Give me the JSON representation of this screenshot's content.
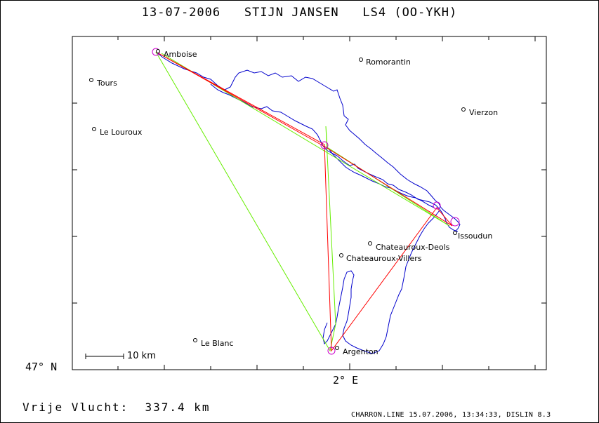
{
  "header": {
    "date": "13-07-2006",
    "pilot": "STIJN JANSEN",
    "glider": "LS4 (OO-YKH)"
  },
  "axes": {
    "lat_label": "47° N",
    "lon_label": "2° E"
  },
  "scale_bar": {
    "label": "10 km"
  },
  "result": {
    "label": "Vrije Vlucht:",
    "value": "337.4 km"
  },
  "footer": "CHARRON.LINE 15.07.2006, 13:34:33, DISLIN 8.3",
  "cities": [
    {
      "name": "Amboise"
    },
    {
      "name": "Romorantin"
    },
    {
      "name": "Tours"
    },
    {
      "name": "Vierzon"
    },
    {
      "name": "Le Louroux"
    },
    {
      "name": "Issoudun"
    },
    {
      "name": "Chateauroux-Deols"
    },
    {
      "name": "Chateauroux-Villers"
    },
    {
      "name": "Le Blanc"
    },
    {
      "name": "Argenton"
    }
  ],
  "colors": {
    "track": "#0000cc",
    "task_line": "#ff0000",
    "free_line": "#66ee00",
    "turnpoint": "#cc00cc"
  }
}
